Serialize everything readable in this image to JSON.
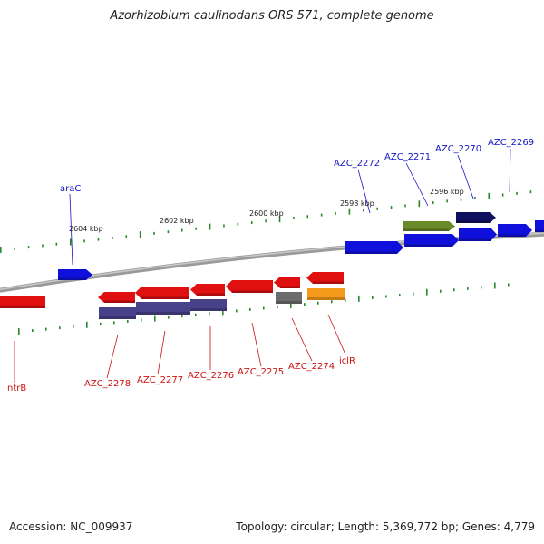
{
  "header": {
    "title": "Azorhizobium caulinodans ORS 571, complete genome"
  },
  "footer": {
    "accession": "Accession: NC_009937",
    "summary": "Topology: circular; Length: 5,369,772 bp; Genes: 4,779"
  },
  "colors": {
    "forward": "#1010dd",
    "reverse": "#e01010",
    "fwd_label": "#1515c8",
    "rev_label": "#cc1111",
    "backbone": "#7a7a7a",
    "tick": "#2a8a2a",
    "olive": "#6a8a28",
    "navy": "#101060",
    "purple": "#48428a",
    "gray": "#6c6c6c",
    "orange": "#f59a1a"
  },
  "scale_labels": [
    "2604 kbp",
    "2602 kbp",
    "2600 kbp",
    "2598 kbp",
    "2596 kbp"
  ],
  "forward_genes": [
    {
      "name": "araC",
      "color": "forward"
    },
    {
      "name": "AZC_2272",
      "color": "forward"
    },
    {
      "name": "",
      "color": "olive"
    },
    {
      "name": "AZC_2271",
      "color": "forward"
    },
    {
      "name": "AZC_2270",
      "color": "navy"
    },
    {
      "name": "",
      "color": "forward"
    },
    {
      "name": "AZC_2269",
      "color": "forward"
    },
    {
      "name": "",
      "color": "forward"
    }
  ],
  "reverse_genes": [
    {
      "name": "ntrB",
      "color": "reverse"
    },
    {
      "name": "AZC_2278",
      "color": "reverse"
    },
    {
      "name": "AZC_2277",
      "color": "reverse"
    },
    {
      "name": "AZC_2276",
      "color": "reverse"
    },
    {
      "name": "AZC_2275",
      "color": "reverse"
    },
    {
      "name": "AZC_2274",
      "color": "reverse"
    },
    {
      "name": "iclR",
      "color": "reverse"
    }
  ],
  "reverse_features": [
    {
      "color": "purple"
    },
    {
      "color": "purple"
    },
    {
      "color": "purple"
    },
    {
      "color": "gray"
    },
    {
      "color": "orange"
    }
  ]
}
